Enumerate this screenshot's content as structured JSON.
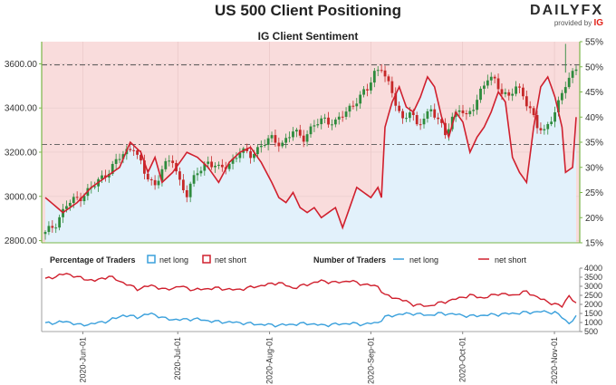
{
  "title": "US 500 Client Positioning",
  "subtitle": "IG Client Sentiment",
  "brand": {
    "logo": "DAILYFX",
    "provided_by": "provided by",
    "provider": "IG"
  },
  "colors": {
    "up": "#2e8b3d",
    "down": "#c62828",
    "net_long": "#3aa0dc",
    "net_short": "#d0202e",
    "pct_area": "#f9dcdc",
    "fill_below": "#e2f1fb",
    "axis": "#7ab648"
  },
  "chart_data": [
    {
      "type": "candlestick",
      "title": "IG Client Sentiment",
      "price_axis": {
        "ticks": [
          "2800.00",
          "3000.00",
          "3200.00",
          "3400.00",
          "3600.00"
        ],
        "range": [
          2790,
          3700
        ]
      },
      "percent_axis": {
        "ticks": [
          "15%",
          "20%",
          "25%",
          "30%",
          "35%",
          "40%",
          "45%",
          "50%",
          "55%"
        ],
        "range": [
          15,
          55
        ]
      },
      "reference_lines": [
        3595,
        3235
      ],
      "x_ticks": [
        "2020-Jun-01",
        "2020-Jul-01",
        "2020-Aug-01",
        "2020-Sep-01",
        "2020-Oct-01",
        "2020-Nov-01"
      ],
      "price_keyframes": [
        [
          0,
          2830
        ],
        [
          3,
          2880
        ],
        [
          6,
          2960
        ],
        [
          10,
          3000
        ],
        [
          14,
          3050
        ],
        [
          18,
          3120
        ],
        [
          22,
          3190
        ],
        [
          25,
          3230
        ],
        [
          28,
          3100
        ],
        [
          31,
          3050
        ],
        [
          33,
          3130
        ],
        [
          36,
          3160
        ],
        [
          38,
          3070
        ],
        [
          40,
          3010
        ],
        [
          43,
          3110
        ],
        [
          46,
          3160
        ],
        [
          49,
          3120
        ],
        [
          52,
          3150
        ],
        [
          55,
          3200
        ],
        [
          58,
          3190
        ],
        [
          61,
          3230
        ],
        [
          64,
          3260
        ],
        [
          67,
          3240
        ],
        [
          70,
          3290
        ],
        [
          73,
          3270
        ],
        [
          76,
          3320
        ],
        [
          79,
          3350
        ],
        [
          82,
          3335
        ],
        [
          85,
          3380
        ],
        [
          88,
          3440
        ],
        [
          91,
          3480
        ],
        [
          93,
          3560
        ],
        [
          95,
          3590
        ],
        [
          97,
          3500
        ],
        [
          99,
          3420
        ],
        [
          101,
          3350
        ],
        [
          103,
          3390
        ],
        [
          105,
          3310
        ],
        [
          107,
          3360
        ],
        [
          109,
          3400
        ],
        [
          111,
          3340
        ],
        [
          113,
          3280
        ],
        [
          115,
          3360
        ],
        [
          117,
          3400
        ],
        [
          119,
          3350
        ],
        [
          121,
          3410
        ],
        [
          123,
          3480
        ],
        [
          125,
          3530
        ],
        [
          127,
          3520
        ],
        [
          129,
          3480
        ],
        [
          131,
          3450
        ],
        [
          133,
          3490
        ],
        [
          135,
          3460
        ],
        [
          137,
          3400
        ],
        [
          139,
          3310
        ],
        [
          141,
          3290
        ],
        [
          143,
          3360
        ],
        [
          145,
          3420
        ],
        [
          147,
          3500
        ],
        [
          149,
          3560
        ],
        [
          150,
          3590
        ]
      ],
      "percent_net_long_keyframes": [
        [
          0,
          24
        ],
        [
          5,
          21
        ],
        [
          9,
          23
        ],
        [
          13,
          26
        ],
        [
          17,
          28
        ],
        [
          21,
          30
        ],
        [
          24,
          35
        ],
        [
          27,
          33
        ],
        [
          29,
          29
        ],
        [
          31,
          32
        ],
        [
          33,
          27
        ],
        [
          36,
          29
        ],
        [
          40,
          33
        ],
        [
          43,
          32
        ],
        [
          46,
          30
        ],
        [
          49,
          27
        ],
        [
          52,
          31
        ],
        [
          55,
          33
        ],
        [
          58,
          34
        ],
        [
          61,
          31
        ],
        [
          64,
          27
        ],
        [
          66,
          24
        ],
        [
          68,
          23
        ],
        [
          70,
          25
        ],
        [
          72,
          22
        ],
        [
          74,
          21
        ],
        [
          76,
          22
        ],
        [
          78,
          20
        ],
        [
          80,
          21
        ],
        [
          82,
          22
        ],
        [
          84,
          18
        ],
        [
          86,
          22
        ],
        [
          88,
          26
        ],
        [
          90,
          25
        ],
        [
          92,
          24
        ],
        [
          94,
          26
        ],
        [
          95,
          24
        ],
        [
          96,
          38
        ],
        [
          98,
          43
        ],
        [
          100,
          46
        ],
        [
          102,
          42
        ],
        [
          104,
          41
        ],
        [
          106,
          44
        ],
        [
          108,
          48
        ],
        [
          110,
          46
        ],
        [
          112,
          40
        ],
        [
          114,
          36
        ],
        [
          116,
          41
        ],
        [
          118,
          39
        ],
        [
          120,
          33
        ],
        [
          122,
          36
        ],
        [
          124,
          38
        ],
        [
          126,
          41
        ],
        [
          128,
          45
        ],
        [
          130,
          43
        ],
        [
          132,
          32
        ],
        [
          134,
          29
        ],
        [
          136,
          27
        ],
        [
          138,
          38
        ],
        [
          140,
          46
        ],
        [
          142,
          48
        ],
        [
          144,
          44
        ],
        [
          146,
          38
        ],
        [
          147,
          29
        ],
        [
          149,
          30
        ],
        [
          150,
          40
        ]
      ],
      "series": [
        {
          "name": "net long"
        },
        {
          "name": "net short"
        }
      ]
    },
    {
      "type": "line",
      "x_ticks": [
        "2020-Jun-01",
        "2020-Jul-01",
        "2020-Aug-01",
        "2020-Sep-01",
        "2020-Oct-01",
        "2020-Nov-01"
      ],
      "left_axis_range": [
        500,
        4000
      ],
      "y_ticks": [
        "500",
        "1000",
        "1500",
        "2000",
        "2500",
        "3000",
        "3500",
        "4000"
      ],
      "legend": {
        "pct_title": "Percentage of Traders",
        "pct_long": "net long",
        "pct_short": "net short",
        "num_title": "Number of Traders",
        "num_long": "net long",
        "num_short": "net short"
      },
      "net_short_keyframes": [
        [
          0,
          3400
        ],
        [
          6,
          3700
        ],
        [
          10,
          3450
        ],
        [
          14,
          3300
        ],
        [
          18,
          3550
        ],
        [
          22,
          3200
        ],
        [
          26,
          2850
        ],
        [
          30,
          3050
        ],
        [
          34,
          2800
        ],
        [
          38,
          3000
        ],
        [
          42,
          2800
        ],
        [
          48,
          2900
        ],
        [
          54,
          2800
        ],
        [
          60,
          3000
        ],
        [
          66,
          3200
        ],
        [
          70,
          2900
        ],
        [
          74,
          3100
        ],
        [
          78,
          3300
        ],
        [
          82,
          3200
        ],
        [
          86,
          3300
        ],
        [
          90,
          3100
        ],
        [
          94,
          3000
        ],
        [
          96,
          2500
        ],
        [
          100,
          2300
        ],
        [
          104,
          2000
        ],
        [
          108,
          1900
        ],
        [
          112,
          2100
        ],
        [
          116,
          2300
        ],
        [
          120,
          2500
        ],
        [
          124,
          2350
        ],
        [
          128,
          2600
        ],
        [
          132,
          2500
        ],
        [
          136,
          2700
        ],
        [
          140,
          2300
        ],
        [
          144,
          2000
        ],
        [
          146,
          1900
        ],
        [
          148,
          2500
        ],
        [
          150,
          2000
        ]
      ],
      "net_long_keyframes": [
        [
          0,
          950
        ],
        [
          6,
          1050
        ],
        [
          10,
          850
        ],
        [
          14,
          950
        ],
        [
          18,
          1100
        ],
        [
          22,
          1400
        ],
        [
          26,
          1300
        ],
        [
          30,
          1500
        ],
        [
          34,
          1200
        ],
        [
          38,
          1150
        ],
        [
          42,
          1200
        ],
        [
          48,
          1050
        ],
        [
          54,
          1000
        ],
        [
          60,
          900
        ],
        [
          66,
          850
        ],
        [
          70,
          900
        ],
        [
          74,
          950
        ],
        [
          78,
          850
        ],
        [
          82,
          900
        ],
        [
          86,
          950
        ],
        [
          90,
          900
        ],
        [
          94,
          1000
        ],
        [
          96,
          1300
        ],
        [
          100,
          1450
        ],
        [
          104,
          1500
        ],
        [
          108,
          1400
        ],
        [
          112,
          1500
        ],
        [
          116,
          1450
        ],
        [
          120,
          1350
        ],
        [
          124,
          1400
        ],
        [
          128,
          1450
        ],
        [
          132,
          1500
        ],
        [
          136,
          1550
        ],
        [
          140,
          1600
        ],
        [
          144,
          1550
        ],
        [
          146,
          1300
        ],
        [
          148,
          950
        ],
        [
          150,
          1300
        ]
      ]
    }
  ]
}
